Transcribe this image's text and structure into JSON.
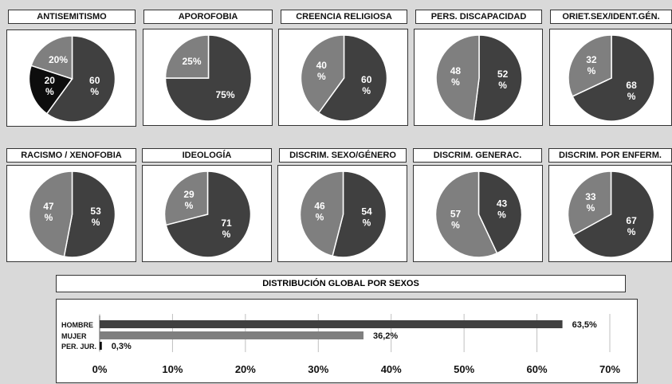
{
  "pie_colors": {
    "dark": "#404040",
    "light": "#7f7f7f",
    "black": "#0d0d0d"
  },
  "bar_colors": {
    "hombre": "#404040",
    "mujer": "#7f7f7f",
    "perjur": "#0d0d0d"
  },
  "chart_data": [
    {
      "type": "pie",
      "title": "ANTISEMITISMO",
      "slices": [
        {
          "value": 60,
          "label": [
            "60",
            "%"
          ],
          "color": "dark"
        },
        {
          "value": 20,
          "label": [
            "20",
            "%"
          ],
          "color": "black"
        },
        {
          "value": 20,
          "label": [
            "20%"
          ],
          "color": "light"
        }
      ]
    },
    {
      "type": "pie",
      "title": "APOROFOBIA",
      "slices": [
        {
          "value": 75,
          "label": [
            "75%"
          ],
          "color": "dark"
        },
        {
          "value": 25,
          "label": [
            "25%"
          ],
          "color": "light"
        }
      ]
    },
    {
      "type": "pie",
      "title": "CREENCIA RELIGIOSA",
      "slices": [
        {
          "value": 60,
          "label": [
            "60",
            "%"
          ],
          "color": "dark"
        },
        {
          "value": 40,
          "label": [
            "40",
            "%"
          ],
          "color": "light"
        }
      ]
    },
    {
      "type": "pie",
      "title": "PERS. DISCAPACIDAD",
      "slices": [
        {
          "value": 52,
          "label": [
            "52",
            "%"
          ],
          "color": "dark"
        },
        {
          "value": 48,
          "label": [
            "48",
            "%"
          ],
          "color": "light"
        }
      ]
    },
    {
      "type": "pie",
      "title": "ORIET.SEX/IDENT.GÉN.",
      "slices": [
        {
          "value": 68,
          "label": [
            "68",
            "%"
          ],
          "color": "dark"
        },
        {
          "value": 32,
          "label": [
            "32",
            "%"
          ],
          "color": "light"
        }
      ]
    },
    {
      "type": "pie",
      "title": "RACISMO / XENOFOBIA",
      "slices": [
        {
          "value": 53,
          "label": [
            "53",
            "%"
          ],
          "color": "dark"
        },
        {
          "value": 47,
          "label": [
            "47",
            "%"
          ],
          "color": "light"
        }
      ]
    },
    {
      "type": "pie",
      "title": "IDEOLOGÍA",
      "slices": [
        {
          "value": 71,
          "label": [
            "71",
            "%"
          ],
          "color": "dark"
        },
        {
          "value": 29,
          "label": [
            "29",
            "%"
          ],
          "color": "light"
        }
      ]
    },
    {
      "type": "pie",
      "title": "DISCRIM. SEXO/GÉNERO",
      "slices": [
        {
          "value": 54,
          "label": [
            "54",
            "%"
          ],
          "color": "dark"
        },
        {
          "value": 46,
          "label": [
            "46",
            "%"
          ],
          "color": "light"
        }
      ]
    },
    {
      "type": "pie",
      "title": "DISCRIM. GENERAC.",
      "slices": [
        {
          "value": 43,
          "label": [
            "43",
            "%"
          ],
          "color": "dark"
        },
        {
          "value": 57,
          "label": [
            "57",
            "%"
          ],
          "color": "light"
        }
      ]
    },
    {
      "type": "pie",
      "title": "DISCRIM. POR ENFERM.",
      "slices": [
        {
          "value": 67,
          "label": [
            "67",
            "%"
          ],
          "color": "dark"
        },
        {
          "value": 33,
          "label": [
            "33",
            "%"
          ],
          "color": "light"
        }
      ]
    },
    {
      "type": "bar",
      "orientation": "horizontal",
      "title": "DISTRIBUCIÓN GLOBAL POR SEXOS",
      "categories": [
        "HOMBRE",
        "MUJER",
        "PER. JUR."
      ],
      "values": [
        63.5,
        36.2,
        0.3
      ],
      "value_labels": [
        "63,5%",
        "36,2%",
        "0,3%"
      ],
      "colors": [
        "hombre",
        "mujer",
        "perjur"
      ],
      "xlim": [
        0,
        70
      ],
      "xticks": [
        0,
        10,
        20,
        30,
        40,
        50,
        60,
        70
      ],
      "xtick_labels": [
        "0%",
        "10%",
        "20%",
        "30%",
        "40%",
        "50%",
        "60%",
        "70%"
      ],
      "grid": true
    }
  ]
}
